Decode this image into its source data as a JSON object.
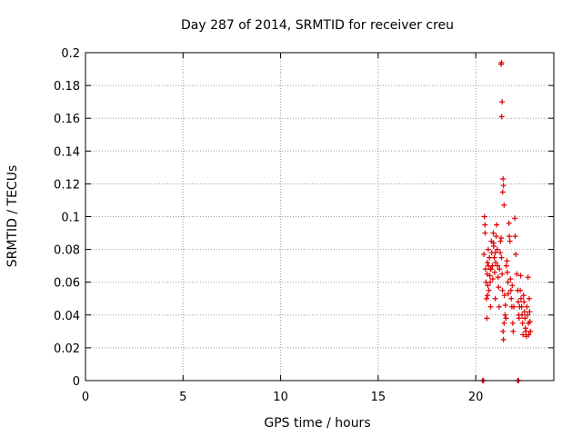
{
  "chart_data": {
    "type": "scatter",
    "title": "Day 287 of 2014, SRMTID for receiver creu",
    "xlabel": "GPS time / hours",
    "ylabel": "SRMTID / TECUs",
    "xlim": [
      0,
      24
    ],
    "ylim": [
      0,
      0.2
    ],
    "xticks": [
      0,
      5,
      10,
      15,
      20
    ],
    "yticks": [
      0,
      0.02,
      0.04,
      0.06,
      0.08,
      0.1,
      0.12,
      0.14,
      0.16,
      0.18,
      0.2
    ],
    "xtick_labels": [
      "0",
      "5",
      "10",
      "15",
      "20"
    ],
    "ytick_labels": [
      "0",
      "0.02",
      "0.04",
      "0.06",
      "0.08",
      "0.1",
      "0.12",
      "0.14",
      "0.16",
      "0.18",
      "0.2"
    ],
    "grid": true,
    "marker": "plus",
    "color": "#dd0000",
    "points": [
      [
        20.35,
        0.0
      ],
      [
        20.4,
        0.0
      ],
      [
        22.15,
        0.0
      ],
      [
        22.2,
        0.0
      ],
      [
        20.42,
        0.077
      ],
      [
        20.45,
        0.1
      ],
      [
        20.47,
        0.095
      ],
      [
        20.48,
        0.09
      ],
      [
        20.5,
        0.068
      ],
      [
        20.52,
        0.06
      ],
      [
        20.55,
        0.05
      ],
      [
        20.57,
        0.038
      ],
      [
        20.58,
        0.065
      ],
      [
        20.6,
        0.072
      ],
      [
        20.62,
        0.058
      ],
      [
        20.64,
        0.08
      ],
      [
        20.65,
        0.07
      ],
      [
        20.67,
        0.055
      ],
      [
        20.7,
        0.075
      ],
      [
        20.72,
        0.064
      ],
      [
        20.74,
        0.06
      ],
      [
        20.76,
        0.045
      ],
      [
        20.78,
        0.068
      ],
      [
        20.8,
        0.085
      ],
      [
        20.82,
        0.078
      ],
      [
        20.85,
        0.07
      ],
      [
        20.87,
        0.062
      ],
      [
        20.9,
        0.09
      ],
      [
        20.92,
        0.082
      ],
      [
        20.95,
        0.075
      ],
      [
        20.97,
        0.066
      ],
      [
        21.0,
        0.05
      ],
      [
        21.02,
        0.072
      ],
      [
        21.05,
        0.088
      ],
      [
        21.07,
        0.095
      ],
      [
        21.1,
        0.08
      ],
      [
        21.12,
        0.07
      ],
      [
        21.15,
        0.063
      ],
      [
        21.17,
        0.057
      ],
      [
        21.2,
        0.045
      ],
      [
        21.22,
        0.068
      ],
      [
        21.25,
        0.078
      ],
      [
        21.27,
        0.085
      ],
      [
        21.3,
        0.087
      ],
      [
        21.32,
        0.075
      ],
      [
        21.35,
        0.065
      ],
      [
        21.37,
        0.055
      ],
      [
        21.4,
        0.03
      ],
      [
        21.42,
        0.025
      ],
      [
        21.45,
        0.035
      ],
      [
        21.47,
        0.052
      ],
      [
        21.5,
        0.04
      ],
      [
        21.52,
        0.046
      ],
      [
        21.55,
        0.038
      ],
      [
        21.57,
        0.07
      ],
      [
        21.6,
        0.073
      ],
      [
        21.62,
        0.066
      ],
      [
        21.65,
        0.06
      ],
      [
        21.67,
        0.053
      ],
      [
        21.7,
        0.096
      ],
      [
        21.72,
        0.088
      ],
      [
        21.75,
        0.085
      ],
      [
        21.78,
        0.062
      ],
      [
        21.8,
        0.055
      ],
      [
        21.82,
        0.05
      ],
      [
        21.85,
        0.045
      ],
      [
        21.87,
        0.058
      ],
      [
        21.9,
        0.035
      ],
      [
        21.92,
        0.03
      ],
      [
        21.95,
        0.045
      ],
      [
        22.0,
        0.099
      ],
      [
        22.02,
        0.088
      ],
      [
        22.05,
        0.077
      ],
      [
        22.1,
        0.065
      ],
      [
        22.15,
        0.055
      ],
      [
        22.18,
        0.048
      ],
      [
        22.2,
        0.04
      ],
      [
        22.22,
        0.038
      ],
      [
        22.25,
        0.045
      ],
      [
        22.28,
        0.055
      ],
      [
        22.3,
        0.064
      ],
      [
        22.32,
        0.05
      ],
      [
        22.35,
        0.045
      ],
      [
        22.37,
        0.04
      ],
      [
        22.4,
        0.035
      ],
      [
        22.42,
        0.028
      ],
      [
        22.45,
        0.052
      ],
      [
        22.47,
        0.048
      ],
      [
        22.5,
        0.042
      ],
      [
        22.52,
        0.038
      ],
      [
        22.55,
        0.032
      ],
      [
        22.57,
        0.03
      ],
      [
        22.6,
        0.027
      ],
      [
        22.62,
        0.045
      ],
      [
        22.65,
        0.04
      ],
      [
        22.68,
        0.063
      ],
      [
        22.7,
        0.035
      ],
      [
        22.72,
        0.028
      ],
      [
        22.74,
        0.05
      ],
      [
        22.76,
        0.042
      ],
      [
        22.78,
        0.036
      ],
      [
        22.8,
        0.03
      ],
      [
        21.3,
        0.193
      ],
      [
        21.32,
        0.194
      ],
      [
        21.35,
        0.17
      ],
      [
        21.33,
        0.161
      ],
      [
        21.4,
        0.123
      ],
      [
        21.42,
        0.119
      ],
      [
        21.38,
        0.115
      ],
      [
        21.45,
        0.107
      ],
      [
        20.9,
        0.084
      ],
      [
        21.0,
        0.078
      ],
      [
        20.6,
        0.052
      ],
      [
        20.75,
        0.068
      ]
    ]
  }
}
